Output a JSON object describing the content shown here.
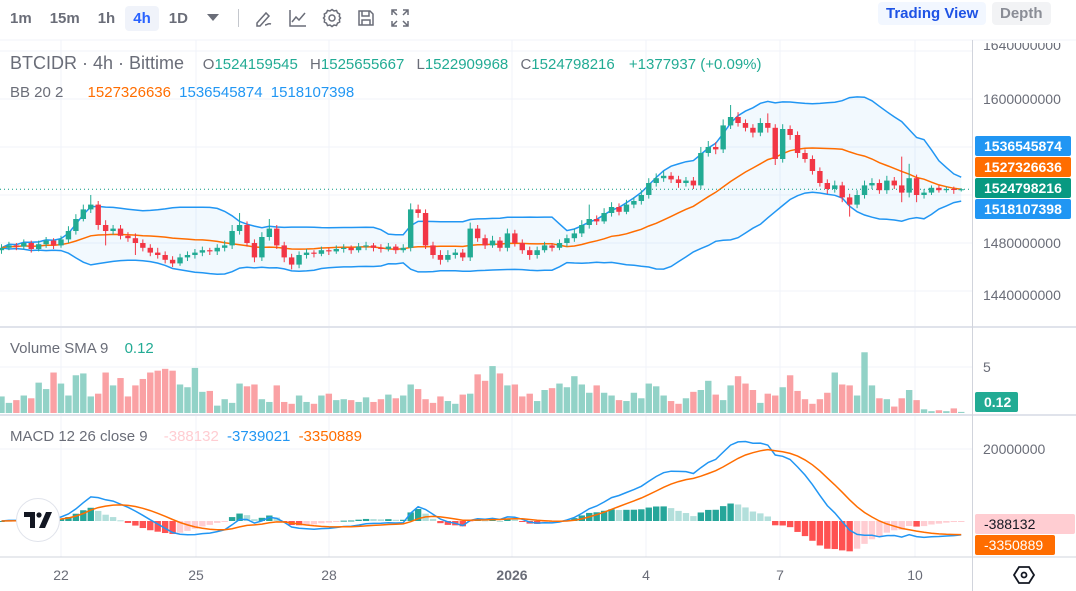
{
  "toolbar": {
    "timeframes": [
      "1m",
      "15m",
      "1h",
      "4h",
      "1D"
    ],
    "active": "4h",
    "icons": [
      "timeframe-dropdown-icon",
      "drawing-pencil-icon",
      "indicators-chart-icon",
      "settings-gear-icon",
      "save-floppy-icon",
      "fullscreen-icon"
    ]
  },
  "views": {
    "trading_view": "Trading View",
    "depth": "Depth",
    "active": "Trading View"
  },
  "colors": {
    "up": "#22ab94",
    "down": "#f23645",
    "bb_band": "#2196f3",
    "bb_basis": "#ff6d00",
    "accent": "#2962ff",
    "macd": "#2196f3",
    "signal": "#ff6d00"
  },
  "legend": {
    "symbol": "BTCIDR · 4h · Bittime",
    "o_label": "O",
    "o": "1524159545",
    "h_label": "H",
    "h": "1525655667",
    "l_label": "L",
    "l": "1522909968",
    "c_label": "C",
    "c": "1524798216",
    "change": "+1377937 (+0.09%)",
    "bb_title": "BB 20 2",
    "bb_basis": "1527326636",
    "bb_upper": "1536545874",
    "bb_lower": "1518107398",
    "vol_title": "Volume SMA 9",
    "vol_value": "0.12",
    "macd_title": "MACD 12 26 close 9",
    "macd_hist": "-388132",
    "macd_line": "-3739021",
    "macd_signal": "-3350889"
  },
  "price_axis": {
    "ticks": [
      "1640000000",
      "1600000000",
      "1480000000",
      "1440000000"
    ],
    "labels": {
      "upper": "1536545874",
      "basis": "1527326636",
      "last": "1524798216",
      "lower": "1518107398"
    }
  },
  "volume_axis": {
    "ticks": [
      "5"
    ],
    "label": "0.12"
  },
  "macd_axis": {
    "ticks": [
      "20000000"
    ],
    "hist_label": "-388132",
    "signal_label": "-3350889"
  },
  "time_axis": {
    "ticks": [
      "22",
      "25",
      "28",
      "2026",
      "4",
      "7",
      "10"
    ]
  },
  "chart_data": {
    "type": "candlestick",
    "symbol": "BTCIDR",
    "interval": "4h",
    "exchange": "Bittime",
    "y_range": [
      1420000000.0,
      1645000000.0
    ],
    "first_open": 1474000000.0,
    "close": [
      1476000000.0,
      1478000000.0,
      1477000000.0,
      1480000000.0,
      1475000000.0,
      1479000000.0,
      1482000000.0,
      1478000000.0,
      1483000000.0,
      1490000000.0,
      1500000000.0,
      1508000000.0,
      1512000000.0,
      1495000000.0,
      1490000000.0,
      1492000000.0,
      1486000000.0,
      1484000000.0,
      1480000000.0,
      1476000000.0,
      1472000000.0,
      1470000000.0,
      1466000000.0,
      1463000000.0,
      1468000000.0,
      1470000000.0,
      1472000000.0,
      1474000000.0,
      1473000000.0,
      1476000000.0,
      1478000000.0,
      1490000000.0,
      1495000000.0,
      1480000000.0,
      1468000000.0,
      1485000000.0,
      1492000000.0,
      1478000000.0,
      1468000000.0,
      1462000000.0,
      1470000000.0,
      1472000000.0,
      1471000000.0,
      1474000000.0,
      1473000000.0,
      1475000000.0,
      1476000000.0,
      1474000000.0,
      1477000000.0,
      1478000000.0,
      1476000000.0,
      1475000000.0,
      1477000000.0,
      1474000000.0,
      1476000000.0,
      1508000000.0,
      1505000000.0,
      1478000000.0,
      1470000000.0,
      1466000000.0,
      1470000000.0,
      1472000000.0,
      1468000000.0,
      1492000000.0,
      1484000000.0,
      1478000000.0,
      1482000000.0,
      1476000000.0,
      1488000000.0,
      1480000000.0,
      1474000000.0,
      1470000000.0,
      1474000000.0,
      1478000000.0,
      1476000000.0,
      1480000000.0,
      1484000000.0,
      1488000000.0,
      1495000000.0,
      1500000000.0,
      1498000000.0,
      1505000000.0,
      1510000000.0,
      1506000000.0,
      1512000000.0,
      1515000000.0,
      1520000000.0,
      1530000000.0,
      1534000000.0,
      1536000000.0,
      1533000000.0,
      1530000000.0,
      1532000000.0,
      1528000000.0,
      1555000000.0,
      1560000000.0,
      1558000000.0,
      1578000000.0,
      1585000000.0,
      1580000000.0,
      1576000000.0,
      1572000000.0,
      1580000000.0,
      1576000000.0,
      1550000000.0,
      1575000000.0,
      1570000000.0,
      1555000000.0,
      1550000000.0,
      1540000000.0,
      1530000000.0,
      1525000000.0,
      1528000000.0,
      1518000000.0,
      1512000000.0,
      1520000000.0,
      1528000000.0,
      1530000000.0,
      1524000000.0,
      1532000000.0,
      1528000000.0,
      1522000000.0,
      1534000000.0,
      1520000000.0,
      1522000000.0,
      1526000000.0,
      1524000000.0,
      1525000000.0,
      1524159545,
      1524798216
    ],
    "high": [
      1479000000.0,
      1481000000.0,
      1480000000.0,
      1483000000.0,
      1482000000.0,
      1482000000.0,
      1485000000.0,
      1484000000.0,
      1486000000.0,
      1494000000.0,
      1504000000.0,
      1512000000.0,
      1520000000.0,
      1515000000.0,
      1499000000.0,
      1495000000.0,
      1495000000.0,
      1489000000.0,
      1488000000.0,
      1483000000.0,
      1479000000.0,
      1476000000.0,
      1473000000.0,
      1469000000.0,
      1471000000.0,
      1473000000.0,
      1475000000.0,
      1477000000.0,
      1476000000.0,
      1479000000.0,
      1482000000.0,
      1495000000.0,
      1505000000.0,
      1498000000.0,
      1483000000.0,
      1489000000.0,
      1500000000.0,
      1495000000.0,
      1481000000.0,
      1471000000.0,
      1473000000.0,
      1475000000.0,
      1474000000.0,
      1477000000.0,
      1476000000.0,
      1478000000.0,
      1479000000.0,
      1478000000.0,
      1480000000.0,
      1481000000.0,
      1480000000.0,
      1479000000.0,
      1480000000.0,
      1479000000.0,
      1479000000.0,
      1513000000.0,
      1512000000.0,
      1508000000.0,
      1481000000.0,
      1474000000.0,
      1474000000.0,
      1475000000.0,
      1475000000.0,
      1497000000.0,
      1495000000.0,
      1487000000.0,
      1486000000.0,
      1485000000.0,
      1492000000.0,
      1491000000.0,
      1483000000.0,
      1477000000.0,
      1477000000.0,
      1481000000.0,
      1480000000.0,
      1483000000.0,
      1487000000.0,
      1492000000.0,
      1499000000.0,
      1512000000.0,
      1503000000.0,
      1509000000.0,
      1514000000.0,
      1513000000.0,
      1516000000.0,
      1518000000.0,
      1524000000.0,
      1534000000.0,
      1538000000.0,
      1540000000.0,
      1539000000.0,
      1536000000.0,
      1535000000.0,
      1535000000.0,
      1560000000.0,
      1565000000.0,
      1564000000.0,
      1583000000.0,
      1595000000.0,
      1589000000.0,
      1583000000.0,
      1579000000.0,
      1584000000.0,
      1588000000.0,
      1579000000.0,
      1579000000.0,
      1578000000.0,
      1573000000.0,
      1558000000.0,
      1553000000.0,
      1543000000.0,
      1533000000.0,
      1532000000.0,
      1531000000.0,
      1521000000.0,
      1524000000.0,
      1532000000.0,
      1534000000.0,
      1533000000.0,
      1536000000.0,
      1535000000.0,
      1552000000.0,
      1546000000.0,
      1537000000.0,
      1525000000.0,
      1528000000.0,
      1528000000.0,
      1527000000.0,
      1527000000.0,
      1525655667
    ],
    "low": [
      1471000000.0,
      1474000000.0,
      1474000000.0,
      1475000000.0,
      1472000000.0,
      1473000000.0,
      1476000000.0,
      1475000000.0,
      1476000000.0,
      1480000000.0,
      1487000000.0,
      1498000000.0,
      1505000000.0,
      1491000000.0,
      1478000000.0,
      1487000000.0,
      1483000000.0,
      1481000000.0,
      1470000000.0,
      1473000000.0,
      1469000000.0,
      1467000000.0,
      1463000000.0,
      1460000000.0,
      1461000000.0,
      1465000000.0,
      1467000000.0,
      1469000000.0,
      1470000000.0,
      1470000000.0,
      1473000000.0,
      1475000000.0,
      1487000000.0,
      1477000000.0,
      1464000000.0,
      1465000000.0,
      1482000000.0,
      1475000000.0,
      1464000000.0,
      1458000000.0,
      1459000000.0,
      1467000000.0,
      1468000000.0,
      1469000000.0,
      1470000000.0,
      1471000000.0,
      1472000000.0,
      1471000000.0,
      1472000000.0,
      1474000000.0,
      1473000000.0,
      1472000000.0,
      1473000000.0,
      1471000000.0,
      1472000000.0,
      1473000000.0,
      1501000000.0,
      1475000000.0,
      1467000000.0,
      1462000000.0,
      1464000000.0,
      1467000000.0,
      1465000000.0,
      1465000000.0,
      1481000000.0,
      1475000000.0,
      1476000000.0,
      1473000000.0,
      1473000000.0,
      1477000000.0,
      1471000000.0,
      1466000000.0,
      1467000000.0,
      1472000000.0,
      1473000000.0,
      1474000000.0,
      1477000000.0,
      1481000000.0,
      1485000000.0,
      1492000000.0,
      1495000000.0,
      1496000000.0,
      1502000000.0,
      1503000000.0,
      1504000000.0,
      1509000000.0,
      1512000000.0,
      1517000000.0,
      1527000000.0,
      1531000000.0,
      1530000000.0,
      1526000000.0,
      1527000000.0,
      1525000000.0,
      1525000000.0,
      1552000000.0,
      1554000000.0,
      1555000000.0,
      1575000000.0,
      1577000000.0,
      1573000000.0,
      1568000000.0,
      1569000000.0,
      1572000000.0,
      1545000000.0,
      1547000000.0,
      1566000000.0,
      1551000000.0,
      1547000000.0,
      1537000000.0,
      1527000000.0,
      1521000000.0,
      1522000000.0,
      1514000000.0,
      1502000000.0,
      1509000000.0,
      1517000000.0,
      1525000000.0,
      1521000000.0,
      1521000000.0,
      1525000000.0,
      1514000000.0,
      1518000000.0,
      1514000000.0,
      1517000000.0,
      1520000000.0,
      1522000000.0,
      1522000000.0,
      1521000000.0,
      1522909968
    ],
    "volume": [
      1.8,
      1.1,
      1.4,
      1.9,
      1.6,
      3.3,
      2.6,
      4.4,
      3.2,
      1.9,
      4.1,
      4.3,
      1.8,
      2.1,
      4.4,
      3.0,
      3.8,
      1.8,
      3.0,
      3.7,
      4.4,
      4.6,
      4.8,
      4.6,
      3.1,
      2.8,
      4.9,
      2.3,
      2.4,
      0.8,
      1.5,
      1.1,
      3.2,
      2.9,
      3.1,
      1.5,
      1.2,
      3.0,
      1.2,
      1.0,
      1.9,
      1.2,
      1.0,
      1.9,
      2.1,
      1.4,
      1.5,
      1.4,
      1.2,
      1.7,
      1.2,
      1.5,
      2.0,
      1.6,
      1.9,
      3.1,
      2.6,
      1.5,
      1.1,
      1.8,
      1.3,
      1.0,
      2.0,
      2.1,
      4.2,
      3.5,
      5.1,
      4.3,
      3.0,
      3.1,
      1.8,
      2.1,
      1.3,
      2.5,
      2.7,
      3.2,
      2.8,
      4.0,
      3.1,
      2.2,
      3.0,
      2.2,
      1.9,
      1.4,
      1.3,
      2.2,
      1.6,
      3.2,
      2.9,
      1.9,
      1.3,
      1.0,
      1.6,
      2.3,
      2.5,
      3.5,
      2.0,
      1.4,
      3.0,
      4.0,
      3.2,
      2.5,
      1.1,
      2.1,
      1.9,
      2.8,
      4.1,
      2.4,
      1.5,
      1.0,
      1.5,
      2.2,
      4.4,
      3.1,
      3.0,
      1.9,
      6.6,
      3.0,
      1.6,
      1.5,
      0.7,
      1.6,
      2.5,
      1.4,
      0.4,
      0.2,
      0.3,
      0.2,
      0.5,
      0.12
    ],
    "indicators": {
      "bollinger": {
        "length": 20,
        "mult": 2
      },
      "volume_sma": 9,
      "macd": {
        "fast": 12,
        "slow": 26,
        "signal": 9
      }
    }
  }
}
